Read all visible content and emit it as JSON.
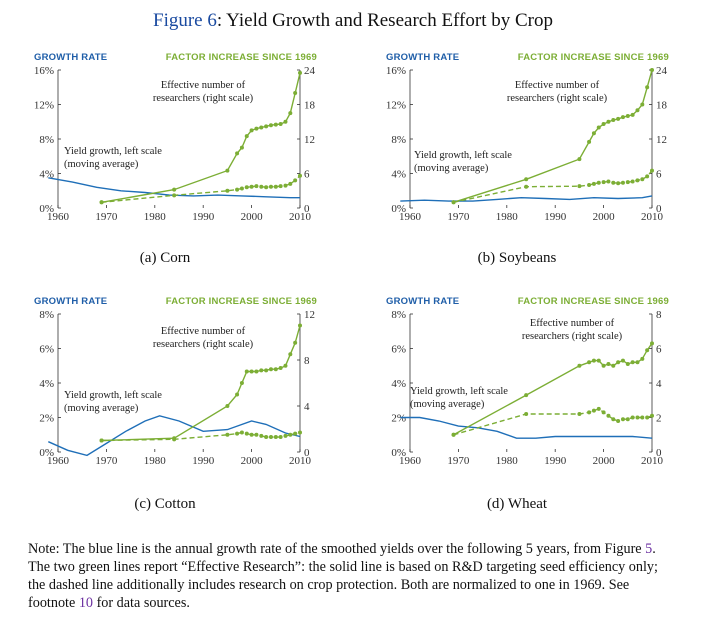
{
  "figure": {
    "label": "Figure 6",
    "title": ": Yield Growth and Research Effort by Crop"
  },
  "colors": {
    "yield": "#1f6fb8",
    "research": "#7cae35"
  },
  "panels": [
    {
      "caption": "(a) Corn",
      "header_left": "GROWTH RATE",
      "header_right": "FACTOR INCREASE SINCE 1969",
      "left_ticks": [
        "16%",
        "12%",
        "8%",
        "4%",
        "0%"
      ],
      "right_ticks": [
        "24",
        "18",
        "12",
        "6",
        "0"
      ],
      "x_ticks": [
        "1960",
        "1970",
        "1980",
        "1990",
        "2000",
        "2010"
      ],
      "research_label": [
        "Effective number of",
        "researchers (right scale)"
      ],
      "yield_label": [
        "Yield growth, left scale",
        "(moving average)"
      ]
    },
    {
      "caption": "(b) Soybeans",
      "header_left": "GROWTH RATE",
      "header_right": "FACTOR INCREASE SINCE 1969",
      "left_ticks": [
        "16%",
        "12%",
        "8%",
        "4%",
        "0%"
      ],
      "right_ticks": [
        "24",
        "18",
        "12",
        "6",
        "0"
      ],
      "x_ticks": [
        "1960",
        "1970",
        "1980",
        "1990",
        "2000",
        "2010"
      ],
      "research_label": [
        "Effective number of",
        "researchers (right scale)"
      ],
      "yield_label": [
        "Yield growth, left scale",
        "(moving average)"
      ]
    },
    {
      "caption": "(c) Cotton",
      "header_left": "GROWTH RATE",
      "header_right": "FACTOR INCREASE SINCE 1969",
      "left_ticks": [
        "8%",
        "6%",
        "4%",
        "2%",
        "0%"
      ],
      "right_ticks": [
        "12",
        "8",
        "4",
        "0"
      ],
      "x_ticks": [
        "1960",
        "1970",
        "1980",
        "1990",
        "2000",
        "2010"
      ],
      "research_label": [
        "Effective number of",
        "researchers (right scale)"
      ],
      "yield_label": [
        "Yield growth, left scale",
        "(moving average)"
      ]
    },
    {
      "caption": "(d) Wheat",
      "header_left": "GROWTH RATE",
      "header_right": "FACTOR INCREASE SINCE 1969",
      "left_ticks": [
        "8%",
        "6%",
        "4%",
        "2%",
        "0%"
      ],
      "right_ticks": [
        "8",
        "6",
        "4",
        "2",
        "0"
      ],
      "x_ticks": [
        "1960",
        "1970",
        "1980",
        "1990",
        "2000",
        "2010"
      ],
      "research_label": [
        "Effective number of",
        "researchers (right scale)"
      ],
      "yield_label": [
        "Yield growth, left scale",
        "(moving average)"
      ]
    }
  ],
  "chart_data": [
    {
      "type": "line",
      "xlim": [
        1960,
        2010
      ],
      "ylim_left": [
        0,
        16
      ],
      "ylim_right": [
        0,
        24
      ],
      "series": [
        {
          "axis": "left",
          "style": "solid",
          "x": [
            1958,
            1963,
            1968,
            1973,
            1978,
            1983,
            1988,
            1993,
            1998,
            2003,
            2008,
            2010
          ],
          "values": [
            3.5,
            3.0,
            2.4,
            2.0,
            1.8,
            1.5,
            1.4,
            1.5,
            1.4,
            1.3,
            1.2,
            1.2
          ]
        },
        {
          "axis": "right",
          "style": "solid",
          "x": [
            1969,
            1984,
            1995,
            1997,
            1998,
            1999,
            2000,
            2001,
            2002,
            2003,
            2004,
            2005,
            2006,
            2007,
            2008,
            2009,
            2010
          ],
          "values": [
            1,
            3.2,
            6.5,
            9.5,
            10.5,
            12.5,
            13.5,
            13.8,
            14,
            14.2,
            14.4,
            14.5,
            14.6,
            15,
            16.5,
            20,
            23.5
          ]
        },
        {
          "axis": "right",
          "style": "dashed",
          "x": [
            1969,
            1984,
            1995,
            1997,
            1998,
            1999,
            2000,
            2001,
            2002,
            2003,
            2004,
            2005,
            2006,
            2007,
            2008,
            2009,
            2010
          ],
          "values": [
            1,
            2.2,
            3.0,
            3.2,
            3.4,
            3.6,
            3.7,
            3.8,
            3.7,
            3.6,
            3.7,
            3.7,
            3.8,
            3.9,
            4.2,
            4.8,
            5.6
          ]
        }
      ]
    },
    {
      "type": "line",
      "xlim": [
        1960,
        2010
      ],
      "ylim_left": [
        0,
        16
      ],
      "ylim_right": [
        0,
        24
      ],
      "series": [
        {
          "axis": "left",
          "style": "solid",
          "x": [
            1958,
            1963,
            1968,
            1973,
            1978,
            1983,
            1988,
            1993,
            1998,
            2003,
            2008,
            2010
          ],
          "values": [
            0.8,
            0.9,
            0.8,
            0.8,
            1.0,
            1.2,
            1.1,
            1.0,
            1.2,
            1.1,
            1.2,
            1.4
          ]
        },
        {
          "axis": "right",
          "style": "solid",
          "x": [
            1969,
            1984,
            1995,
            1997,
            1998,
            1999,
            2000,
            2001,
            2002,
            2003,
            2004,
            2005,
            2006,
            2007,
            2008,
            2009,
            2010
          ],
          "values": [
            1,
            5.0,
            8.5,
            11.5,
            13,
            14,
            14.6,
            15,
            15.3,
            15.5,
            15.8,
            16,
            16.2,
            17,
            18,
            21,
            24
          ]
        },
        {
          "axis": "right",
          "style": "dashed",
          "x": [
            1969,
            1984,
            1995,
            1997,
            1998,
            1999,
            2000,
            2001,
            2002,
            2003,
            2004,
            2005,
            2006,
            2007,
            2008,
            2009,
            2010
          ],
          "values": [
            1,
            3.7,
            3.8,
            4.0,
            4.2,
            4.4,
            4.5,
            4.6,
            4.4,
            4.3,
            4.4,
            4.5,
            4.6,
            4.8,
            5.0,
            5.5,
            6.5
          ]
        }
      ]
    },
    {
      "type": "line",
      "xlim": [
        1960,
        2010
      ],
      "ylim_left": [
        0,
        8
      ],
      "ylim_right": [
        0,
        12
      ],
      "series": [
        {
          "axis": "left",
          "style": "solid",
          "x": [
            1958,
            1962,
            1966,
            1970,
            1974,
            1978,
            1981,
            1985,
            1990,
            1995,
            2000,
            2003,
            2007,
            2010
          ],
          "values": [
            0.6,
            0.1,
            -0.2,
            0.5,
            1.2,
            1.8,
            2.1,
            1.8,
            1.2,
            1.3,
            1.8,
            1.6,
            1.1,
            0.9
          ]
        },
        {
          "axis": "right",
          "style": "solid",
          "x": [
            1969,
            1984,
            1995,
            1997,
            1998,
            1999,
            2000,
            2001,
            2002,
            2003,
            2004,
            2005,
            2006,
            2007,
            2008,
            2009,
            2010
          ],
          "values": [
            1,
            1.2,
            4.0,
            5.0,
            6.0,
            7.0,
            7.0,
            7.0,
            7.1,
            7.1,
            7.2,
            7.2,
            7.3,
            7.5,
            8.5,
            9.5,
            11.0
          ]
        },
        {
          "axis": "right",
          "style": "dashed",
          "x": [
            1969,
            1984,
            1995,
            1997,
            1998,
            1999,
            2000,
            2001,
            2002,
            2003,
            2004,
            2005,
            2006,
            2007,
            2008,
            2009,
            2010
          ],
          "values": [
            1,
            1.1,
            1.5,
            1.6,
            1.7,
            1.6,
            1.5,
            1.5,
            1.4,
            1.3,
            1.3,
            1.3,
            1.3,
            1.4,
            1.5,
            1.6,
            1.7
          ]
        }
      ]
    },
    {
      "type": "line",
      "xlim": [
        1960,
        2010
      ],
      "ylim_left": [
        0,
        8
      ],
      "ylim_right": [
        0,
        8
      ],
      "series": [
        {
          "axis": "left",
          "style": "solid",
          "x": [
            1958,
            1962,
            1966,
            1970,
            1974,
            1978,
            1982,
            1986,
            1990,
            1994,
            1998,
            2002,
            2006,
            2010
          ],
          "values": [
            2.0,
            2.0,
            1.8,
            1.5,
            1.4,
            1.2,
            0.8,
            0.8,
            0.9,
            0.9,
            0.9,
            0.9,
            0.9,
            0.8
          ]
        },
        {
          "axis": "right",
          "style": "solid",
          "x": [
            1969,
            1984,
            1995,
            1997,
            1998,
            1999,
            2000,
            2001,
            2002,
            2003,
            2004,
            2005,
            2006,
            2007,
            2008,
            2009,
            2010
          ],
          "values": [
            1,
            3.3,
            5.0,
            5.2,
            5.3,
            5.3,
            5.0,
            5.1,
            5.0,
            5.2,
            5.3,
            5.1,
            5.2,
            5.2,
            5.4,
            5.9,
            6.3
          ]
        },
        {
          "axis": "right",
          "style": "dashed",
          "x": [
            1969,
            1984,
            1995,
            1997,
            1998,
            1999,
            2000,
            2001,
            2002,
            2003,
            2004,
            2005,
            2006,
            2007,
            2008,
            2009,
            2010
          ],
          "values": [
            1,
            2.2,
            2.2,
            2.3,
            2.4,
            2.5,
            2.3,
            2.1,
            1.9,
            1.8,
            1.9,
            1.9,
            2.0,
            2.0,
            2.0,
            2.0,
            2.1
          ]
        }
      ]
    }
  ],
  "note": {
    "part1": "Note: The blue line is the annual growth rate of the smoothed yields over the following 5 years, from Figure ",
    "ref1": "5",
    "part2": ". The two green lines report “Effective Research”: the solid line is based on R&D targeting seed efficiency only; the dashed line additionally includes research on crop protection. Both are normalized to one in 1969. See footnote ",
    "ref2": "10",
    "part3": " for data sources."
  }
}
